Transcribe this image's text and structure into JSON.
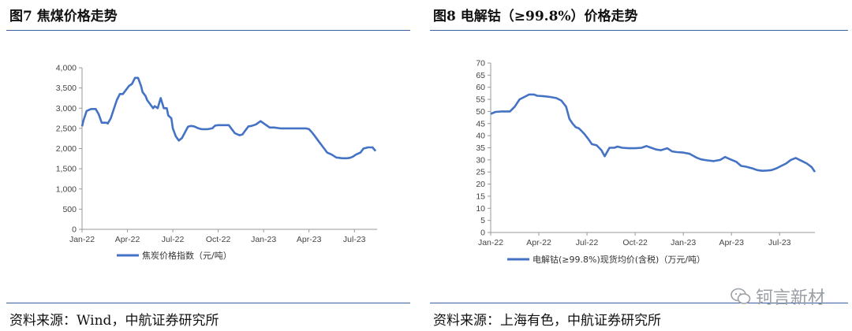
{
  "figures": [
    {
      "title": "图7  焦煤价格走势",
      "source": "资料来源：Wind，中航证券研究所"
    },
    {
      "title": "图8  电解钴（≥99.8%）价格走势",
      "source": "资料来源：上海有色，中航证券研究所"
    }
  ],
  "watermark": "钶言新材",
  "chart_data": [
    {
      "type": "line",
      "title": "",
      "ylim": [
        0,
        4000
      ],
      "yticks": [
        0,
        500,
        1000,
        1500,
        2000,
        2500,
        3000,
        3500,
        4000
      ],
      "ytick_labels": [
        "0",
        "500",
        "1,000",
        "1,500",
        "2,000",
        "2,500",
        "3,000",
        "3,500",
        "4,000"
      ],
      "xlim": [
        0,
        19.5
      ],
      "xticks": [
        0,
        3,
        6,
        9,
        12,
        15,
        18
      ],
      "xtick_labels": [
        "Jan-22",
        "Apr-22",
        "Jul-22",
        "Oct-22",
        "Jan-23",
        "Apr-23",
        "Jul-23"
      ],
      "color": "#4472c4",
      "series": [
        {
          "name": "焦炭价格指数（元/吨）",
          "x": [
            0,
            0.1,
            0.3,
            0.6,
            0.9,
            1.1,
            1.3,
            1.6,
            1.7,
            1.9,
            2.1,
            2.3,
            2.5,
            2.7,
            2.9,
            3.1,
            3.3,
            3.5,
            3.7,
            3.9,
            4.0,
            4.2,
            4.3,
            4.5,
            4.7,
            4.8,
            5.0,
            5.2,
            5.4,
            5.6,
            5.7,
            5.9,
            6.0,
            6.2,
            6.4,
            6.6,
            7.0,
            7.2,
            7.4,
            7.7,
            7.9,
            8.3,
            8.6,
            8.8,
            9.0,
            9.3,
            9.7,
            10.1,
            10.4,
            10.6,
            10.8,
            11.0,
            11.2,
            11.5,
            11.8,
            12.1,
            12.4,
            12.7,
            13.1,
            13.5,
            14.0,
            14.5,
            14.8,
            15.0,
            15.2,
            15.4,
            15.6,
            15.8,
            16.0,
            16.2,
            16.5,
            16.8,
            17.2,
            17.5,
            17.7,
            17.9,
            18.1,
            18.4,
            18.6,
            18.9,
            19.2,
            19.4
          ],
          "values": [
            2550,
            2700,
            2930,
            2980,
            2980,
            2850,
            2640,
            2640,
            2620,
            2750,
            2980,
            3200,
            3350,
            3350,
            3450,
            3550,
            3600,
            3750,
            3750,
            3550,
            3400,
            3300,
            3200,
            3100,
            3000,
            3050,
            3000,
            3250,
            3000,
            3000,
            2820,
            2750,
            2500,
            2300,
            2200,
            2260,
            2540,
            2560,
            2550,
            2500,
            2480,
            2480,
            2500,
            2570,
            2580,
            2580,
            2580,
            2380,
            2330,
            2350,
            2450,
            2550,
            2560,
            2600,
            2680,
            2600,
            2520,
            2520,
            2500,
            2500,
            2500,
            2500,
            2500,
            2480,
            2400,
            2300,
            2200,
            2100,
            2000,
            1900,
            1850,
            1780,
            1760,
            1760,
            1770,
            1800,
            1850,
            1900,
            2000,
            2030,
            2030,
            1940
          ]
        }
      ]
    },
    {
      "type": "line",
      "title": "",
      "ylim": [
        0,
        70
      ],
      "yticks": [
        0,
        5,
        10,
        15,
        20,
        25,
        30,
        35,
        40,
        45,
        50,
        55,
        60,
        65,
        70
      ],
      "ytick_labels": [
        "0",
        "5",
        "10",
        "15",
        "20",
        "25",
        "30",
        "35",
        "40",
        "45",
        "50",
        "55",
        "60",
        "65",
        "70"
      ],
      "xlim": [
        0,
        20.2
      ],
      "xticks": [
        0,
        3,
        6,
        9,
        12,
        15,
        18
      ],
      "xtick_labels": [
        "Jan-22",
        "Apr-22",
        "Jul-22",
        "Oct-22",
        "Jan-23",
        "Apr-23",
        "Jul-23"
      ],
      "color": "#4472c4",
      "series": [
        {
          "name": "电解钴(≥99.8%)现货均价(含税)（万元/吨）",
          "x": [
            0,
            0.3,
            0.7,
            1.2,
            1.5,
            1.8,
            2.1,
            2.4,
            2.7,
            2.9,
            3.3,
            3.7,
            4.1,
            4.4,
            4.7,
            4.9,
            5.1,
            5.3,
            5.5,
            5.8,
            6.1,
            6.3,
            6.6,
            6.9,
            7.1,
            7.4,
            7.7,
            7.9,
            8.2,
            8.6,
            9.0,
            9.4,
            9.7,
            10.0,
            10.3,
            10.6,
            11.0,
            11.3,
            11.6,
            12.0,
            12.4,
            12.8,
            13.1,
            13.5,
            13.9,
            14.3,
            14.6,
            14.9,
            15.3,
            15.6,
            15.9,
            16.3,
            16.6,
            16.9,
            17.2,
            17.5,
            17.8,
            18.1,
            18.4,
            18.7,
            19.0,
            19.4,
            19.7,
            20.0,
            20.2
          ],
          "values": [
            49,
            49.8,
            50,
            50,
            52,
            55,
            56,
            57,
            57,
            56.5,
            56.3,
            56,
            55.5,
            54.5,
            52,
            47,
            45,
            43.5,
            43,
            41,
            38.5,
            36.5,
            36,
            34,
            31.5,
            35,
            35,
            35.5,
            35,
            34.8,
            34.8,
            35,
            35.7,
            35,
            34.3,
            34,
            34.8,
            33.5,
            33.2,
            33,
            32.5,
            31,
            30.2,
            29.8,
            29.5,
            30,
            31.2,
            30.3,
            29.2,
            27.5,
            27.2,
            26.5,
            25.8,
            25.5,
            25.6,
            25.8,
            26.5,
            27.5,
            28.5,
            30,
            30.8,
            29.5,
            28.5,
            27,
            25
          ]
        }
      ]
    }
  ]
}
